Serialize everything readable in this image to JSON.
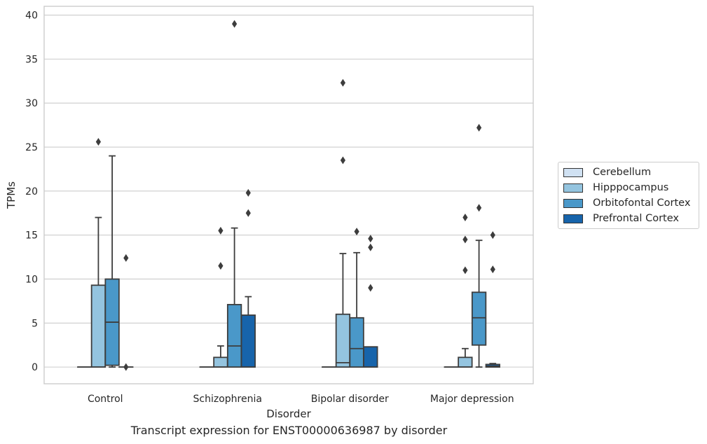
{
  "chart_data": {
    "type": "box",
    "title": "",
    "caption": "Transcript expression for ENST00000636987 by disorder",
    "xlabel": "Disorder",
    "ylabel": "TPMs",
    "ylim": [
      -1.9,
      41
    ],
    "yticks": [
      0,
      5,
      10,
      15,
      20,
      25,
      30,
      35,
      40
    ],
    "grid": "horizontal",
    "legend_position": "right",
    "categories": [
      "Control",
      "Schizophrenia",
      "Bipolar disorder",
      "Major depression"
    ],
    "series": [
      {
        "name": "Cerebellum",
        "color": "#d0e1f2",
        "boxes": [
          {
            "q1": 0,
            "median": 0,
            "q3": 0,
            "whisker_low": 0,
            "whisker_high": 0,
            "outliers": []
          },
          {
            "q1": 0,
            "median": 0,
            "q3": 0,
            "whisker_low": 0,
            "whisker_high": 0,
            "outliers": []
          },
          {
            "q1": 0,
            "median": 0,
            "q3": 0,
            "whisker_low": 0,
            "whisker_high": 0,
            "outliers": []
          },
          {
            "q1": 0,
            "median": 0,
            "q3": 0,
            "whisker_low": 0,
            "whisker_high": 0,
            "outliers": []
          }
        ]
      },
      {
        "name": "Hipppocampus",
        "color": "#94c4df",
        "boxes": [
          {
            "q1": 0,
            "median": 0,
            "q3": 9.3,
            "whisker_low": 0,
            "whisker_high": 17.0,
            "outliers": [
              25.6
            ]
          },
          {
            "q1": 0,
            "median": 0,
            "q3": 1.1,
            "whisker_low": 0,
            "whisker_high": 2.4,
            "outliers": [
              15.5,
              11.5
            ]
          },
          {
            "q1": 0,
            "median": 0.5,
            "q3": 6.0,
            "whisker_low": 0,
            "whisker_high": 12.9,
            "outliers": [
              32.3,
              23.5
            ]
          },
          {
            "q1": 0,
            "median": 0,
            "q3": 1.1,
            "whisker_low": 0,
            "whisker_high": 2.1,
            "outliers": [
              17.0,
              14.5,
              11.0
            ]
          }
        ]
      },
      {
        "name": "Orbitofontal Cortex",
        "color": "#4a98c9",
        "boxes": [
          {
            "q1": 0.2,
            "median": 5.1,
            "q3": 10.0,
            "whisker_low": 0,
            "whisker_high": 24.0,
            "outliers": []
          },
          {
            "q1": 0,
            "median": 2.4,
            "q3": 7.1,
            "whisker_low": 0,
            "whisker_high": 15.8,
            "outliers": [
              39.0
            ]
          },
          {
            "q1": 0,
            "median": 2.1,
            "q3": 5.6,
            "whisker_low": 0,
            "whisker_high": 13.0,
            "outliers": [
              15.4
            ]
          },
          {
            "q1": 2.5,
            "median": 5.6,
            "q3": 8.5,
            "whisker_low": 0,
            "whisker_high": 14.4,
            "outliers": [
              27.2,
              18.1
            ]
          }
        ]
      },
      {
        "name": "Prefrontal Cortex",
        "color": "#1764ab",
        "boxes": [
          {
            "q1": 0,
            "median": 0,
            "q3": 0,
            "whisker_low": 0,
            "whisker_high": 0,
            "outliers": [
              12.4,
              0
            ]
          },
          {
            "q1": 0,
            "median": 0,
            "q3": 5.9,
            "whisker_low": 0,
            "whisker_high": 8.0,
            "outliers": [
              19.8,
              17.5
            ]
          },
          {
            "q1": 0,
            "median": 0,
            "q3": 2.3,
            "whisker_low": 0,
            "whisker_high": 2.3,
            "outliers": [
              14.6,
              13.6,
              9.0
            ]
          },
          {
            "q1": 0,
            "median": 0.1,
            "q3": 0.3,
            "whisker_low": 0,
            "whisker_high": 0.4,
            "outliers": [
              15.0,
              11.1
            ]
          }
        ]
      }
    ]
  }
}
